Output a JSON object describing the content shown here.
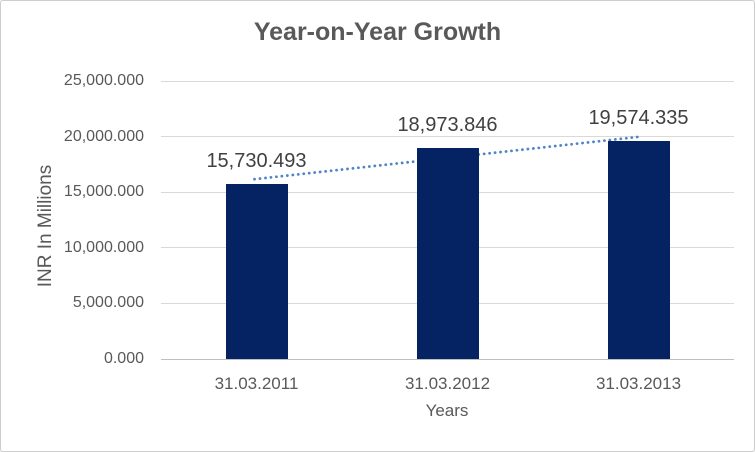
{
  "chart_data": {
    "type": "bar",
    "title": "Year-on-Year Growth",
    "xlabel": "Years",
    "ylabel": "INR In Millions",
    "categories": [
      "31.03.2011",
      "31.03.2012",
      "31.03.2013"
    ],
    "values": [
      15730.493,
      18973.846,
      19574.335
    ],
    "data_labels": [
      "15,730.493",
      "18,973.846",
      "19,574.335"
    ],
    "ylim": [
      0,
      25000
    ],
    "y_tick_interval": 5000,
    "y_tick_labels": [
      "0.000",
      "5,000.000",
      "10,000.000",
      "15,000.000",
      "20,000.000",
      "25,000.000"
    ],
    "grid": true,
    "legend": "none",
    "trendline": {
      "type": "linear",
      "style": "dotted"
    },
    "colors": {
      "bar": "#052262",
      "trendline": "#4e84c6",
      "gridline": "#d9d9d9",
      "axis_line": "#bfbfbf",
      "title_text": "#595959",
      "axis_text": "#595959",
      "data_label_text": "#404040",
      "border": "#cdcdcd",
      "background": "#ffffff"
    }
  }
}
